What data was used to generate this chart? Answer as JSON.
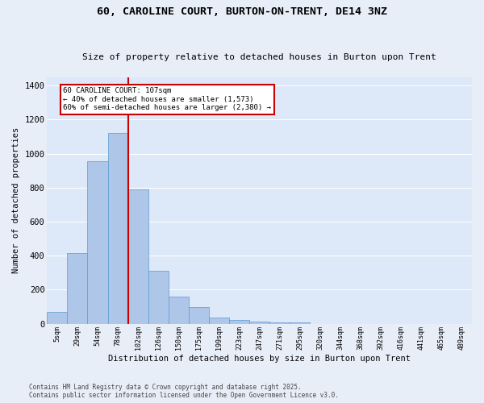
{
  "title1": "60, CAROLINE COURT, BURTON-ON-TRENT, DE14 3NZ",
  "title2": "Size of property relative to detached houses in Burton upon Trent",
  "xlabel": "Distribution of detached houses by size in Burton upon Trent",
  "ylabel": "Number of detached properties",
  "categories": [
    "5sqm",
    "29sqm",
    "54sqm",
    "78sqm",
    "102sqm",
    "126sqm",
    "150sqm",
    "175sqm",
    "199sqm",
    "223sqm",
    "247sqm",
    "271sqm",
    "295sqm",
    "320sqm",
    "344sqm",
    "368sqm",
    "392sqm",
    "416sqm",
    "441sqm",
    "465sqm",
    "489sqm"
  ],
  "values": [
    70,
    415,
    955,
    1120,
    790,
    310,
    160,
    100,
    35,
    20,
    15,
    10,
    8,
    0,
    0,
    0,
    0,
    0,
    0,
    0,
    0
  ],
  "bar_color": "#aec6e8",
  "bar_edge_color": "#5b9bd5",
  "background_color": "#dde8f8",
  "fig_background_color": "#e8eef8",
  "grid_color": "#ffffff",
  "vline_color": "#cc0000",
  "annotation_text": "60 CAROLINE COURT: 107sqm\n← 40% of detached houses are smaller (1,573)\n60% of semi-detached houses are larger (2,380) →",
  "annotation_box_color": "#cc0000",
  "ylim": [
    0,
    1450
  ],
  "yticks": [
    0,
    200,
    400,
    600,
    800,
    1000,
    1200,
    1400
  ],
  "footer1": "Contains HM Land Registry data © Crown copyright and database right 2025.",
  "footer2": "Contains public sector information licensed under the Open Government Licence v3.0."
}
